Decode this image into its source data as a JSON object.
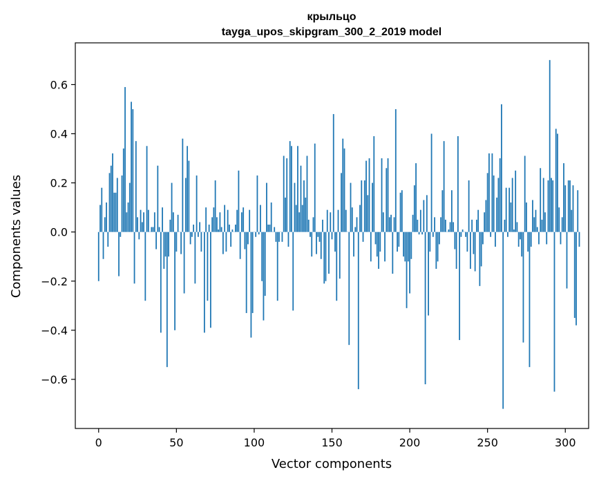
{
  "chart_data": {
    "type": "bar",
    "title": "крыльцо",
    "subtitle": "tayga_upos_skipgram_300_2_2019 model",
    "xlabel": "Vector components",
    "ylabel": "Components values",
    "xlim": [
      -15,
      315
    ],
    "ylim": [
      -0.8,
      0.77
    ],
    "xticks": [
      0,
      50,
      100,
      150,
      200,
      250,
      300
    ],
    "yticks": [
      -0.6,
      -0.4,
      -0.2,
      0.0,
      0.2,
      0.4,
      0.6
    ],
    "ytick_labels": [
      "−0.6",
      "−0.4",
      "−0.2",
      "0.0",
      "0.2",
      "0.4",
      "0.6"
    ],
    "xtick_labels": [
      "0",
      "50",
      "100",
      "150",
      "200",
      "250",
      "300"
    ],
    "bar_color": "#1f77b4",
    "grid": false,
    "values": [
      -0.2,
      0.11,
      0.18,
      -0.11,
      0.06,
      0.12,
      -0.06,
      0.24,
      0.27,
      0.32,
      0.16,
      0.16,
      0.22,
      -0.18,
      -0.02,
      0.23,
      0.34,
      0.59,
      0.08,
      0.12,
      0.2,
      0.53,
      0.5,
      -0.21,
      0.37,
      0.06,
      -0.03,
      0.09,
      0.04,
      0.08,
      -0.28,
      0.35,
      0.09,
      0.0,
      0.02,
      0.02,
      0.08,
      -0.07,
      0.27,
      0.02,
      -0.41,
      0.1,
      -0.15,
      -0.1,
      -0.55,
      -0.1,
      0.05,
      0.2,
      0.08,
      -0.4,
      -0.08,
      0.07,
      0.0,
      -0.09,
      0.38,
      -0.25,
      0.22,
      0.35,
      0.29,
      -0.05,
      -0.02,
      0.03,
      -0.21,
      0.23,
      -0.02,
      0.04,
      -0.08,
      0.0,
      -0.41,
      0.1,
      -0.28,
      0.03,
      -0.39,
      0.06,
      0.1,
      0.21,
      0.06,
      0.01,
      0.08,
      0.02,
      -0.09,
      0.11,
      -0.08,
      0.09,
      0.03,
      -0.06,
      0.01,
      0.0,
      0.03,
      0.09,
      0.25,
      -0.11,
      0.08,
      0.1,
      -0.07,
      -0.33,
      -0.05,
      0.09,
      -0.43,
      -0.33,
      0.0,
      -0.02,
      0.23,
      -0.01,
      0.11,
      -0.2,
      -0.36,
      -0.26,
      0.2,
      0.03,
      0.03,
      0.12,
      0.0,
      0.02,
      -0.04,
      -0.28,
      -0.04,
      0.0,
      -0.04,
      0.31,
      0.14,
      0.3,
      -0.06,
      0.37,
      0.35,
      -0.32,
      0.2,
      0.11,
      0.35,
      0.08,
      0.27,
      0.11,
      0.21,
      0.14,
      0.31,
      0.05,
      -0.02,
      -0.1,
      0.06,
      0.36,
      -0.09,
      -0.02,
      -0.04,
      -0.11,
      0.05,
      -0.21,
      -0.2,
      0.09,
      -0.17,
      0.08,
      -0.03,
      0.48,
      -0.08,
      -0.28,
      0.09,
      -0.19,
      0.24,
      0.38,
      0.34,
      0.09,
      0.0,
      -0.46,
      0.2,
      0.1,
      -0.1,
      0.02,
      0.06,
      -0.64,
      0.11,
      0.21,
      -0.04,
      0.21,
      0.29,
      0.15,
      0.3,
      -0.12,
      0.2,
      0.39,
      -0.05,
      -0.1,
      -0.15,
      -0.08,
      0.3,
      0.08,
      -0.12,
      0.26,
      0.3,
      0.06,
      0.07,
      -0.17,
      0.06,
      0.5,
      -0.08,
      -0.06,
      0.16,
      0.17,
      -0.1,
      -0.12,
      -0.31,
      -0.12,
      -0.25,
      -0.11,
      0.07,
      0.19,
      0.28,
      0.05,
      -0.01,
      0.09,
      -0.01,
      0.13,
      -0.62,
      0.15,
      -0.34,
      -0.08,
      0.4,
      -0.02,
      0.06,
      -0.15,
      -0.12,
      -0.05,
      0.06,
      0.17,
      0.37,
      0.05,
      0.0,
      0.01,
      0.04,
      0.17,
      0.04,
      -0.07,
      -0.15,
      0.39,
      -0.44,
      -0.02,
      0.01,
      0.0,
      -0.02,
      -0.08,
      0.21,
      -0.15,
      0.05,
      -0.09,
      -0.16,
      0.05,
      0.09,
      -0.22,
      -0.14,
      -0.05,
      0.08,
      0.13,
      0.24,
      0.32,
      -0.02,
      0.32,
      0.23,
      -0.06,
      0.14,
      0.22,
      0.3,
      0.52,
      -0.72,
      0.05,
      0.18,
      -0.02,
      0.18,
      0.12,
      0.22,
      0.01,
      0.25,
      0.04,
      -0.06,
      -0.03,
      -0.1,
      -0.45,
      0.31,
      0.12,
      -0.08,
      -0.55,
      -0.06,
      0.13,
      0.06,
      0.09,
      0.02,
      -0.05,
      0.26,
      0.05,
      0.22,
      0.08,
      -0.05,
      0.21,
      0.7,
      0.22,
      0.21,
      -0.65,
      0.42,
      0.4,
      0.1,
      -0.05,
      0.06,
      0.28,
      0.19,
      -0.23,
      0.21,
      0.21,
      0.09,
      0.19,
      -0.35,
      -0.38,
      0.17,
      -0.06
    ]
  }
}
